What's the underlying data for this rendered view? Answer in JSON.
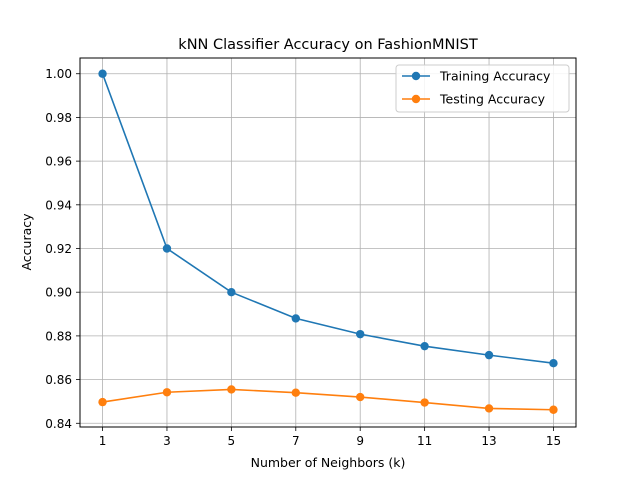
{
  "chart_data": {
    "type": "line",
    "title": "kNN Classifier Accuracy on FashionMNIST",
    "xlabel": "Number of Neighbors (k)",
    "ylabel": "Accuracy",
    "x": [
      1,
      3,
      5,
      7,
      9,
      11,
      13,
      15
    ],
    "xticks": [
      "1",
      "3",
      "5",
      "7",
      "9",
      "11",
      "13",
      "15"
    ],
    "yticks": [
      "0.84",
      "0.86",
      "0.88",
      "0.90",
      "0.92",
      "0.94",
      "0.96",
      "0.98",
      "1.00"
    ],
    "xlim": [
      0.3,
      15.7
    ],
    "ylim": [
      0.8383,
      1.0072
    ],
    "grid": true,
    "legend_position": "top-right",
    "series": [
      {
        "name": "Training Accuracy",
        "color": "#1f77b4",
        "values": [
          1.0,
          0.92,
          0.9,
          0.888,
          0.8808,
          0.8753,
          0.8712,
          0.8675
        ]
      },
      {
        "name": "Testing Accuracy",
        "color": "#ff7f0e",
        "values": [
          0.8497,
          0.8542,
          0.8555,
          0.854,
          0.852,
          0.8495,
          0.8468,
          0.8462
        ]
      }
    ]
  }
}
